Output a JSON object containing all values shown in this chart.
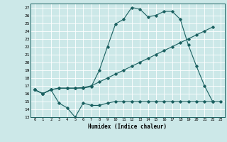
{
  "xlabel": "Humidex (Indice chaleur)",
  "bg_color": "#cce8e8",
  "grid_color": "#ffffff",
  "line_color": "#1a6060",
  "xlim": [
    -0.5,
    23.5
  ],
  "ylim": [
    13,
    27.5
  ],
  "yticks": [
    13,
    14,
    15,
    16,
    17,
    18,
    19,
    20,
    21,
    22,
    23,
    24,
    25,
    26,
    27
  ],
  "xticks": [
    0,
    1,
    2,
    3,
    4,
    5,
    6,
    7,
    8,
    9,
    10,
    11,
    12,
    13,
    14,
    15,
    16,
    17,
    18,
    19,
    20,
    21,
    22,
    23
  ],
  "line1_x": [
    0,
    1,
    2,
    3,
    4,
    5,
    6,
    7,
    8,
    9,
    10,
    11,
    12,
    13,
    14,
    15,
    16,
    17,
    18,
    19,
    20,
    21,
    22
  ],
  "line1_y": [
    16.5,
    16.0,
    16.5,
    16.7,
    16.7,
    16.7,
    16.7,
    16.9,
    19.0,
    22.0,
    24.9,
    25.5,
    27.0,
    26.8,
    25.8,
    26.0,
    26.5,
    26.5,
    25.5,
    22.2,
    19.5,
    17.0,
    15.0
  ],
  "line2_x": [
    0,
    1,
    2,
    3,
    4,
    5,
    6,
    7,
    8,
    9,
    10,
    11,
    12,
    13,
    14,
    15,
    16,
    17,
    18,
    19,
    20,
    21,
    22
  ],
  "line2_y": [
    16.5,
    16.0,
    16.5,
    16.7,
    16.7,
    16.7,
    16.8,
    17.0,
    17.5,
    18.0,
    18.5,
    19.0,
    19.5,
    20.0,
    20.5,
    21.0,
    21.5,
    22.0,
    22.5,
    23.0,
    23.5,
    24.0,
    24.5
  ],
  "line3_x": [
    0,
    1,
    2,
    3,
    4,
    5,
    6,
    7,
    8,
    9,
    10,
    11,
    12,
    13,
    14,
    15,
    16,
    17,
    18,
    19,
    20,
    21,
    22,
    23
  ],
  "line3_y": [
    16.5,
    16.0,
    16.5,
    14.8,
    14.2,
    13.0,
    14.8,
    14.5,
    14.5,
    14.8,
    15.0,
    15.0,
    15.0,
    15.0,
    15.0,
    15.0,
    15.0,
    15.0,
    15.0,
    15.0,
    15.0,
    15.0,
    15.0,
    15.0
  ]
}
